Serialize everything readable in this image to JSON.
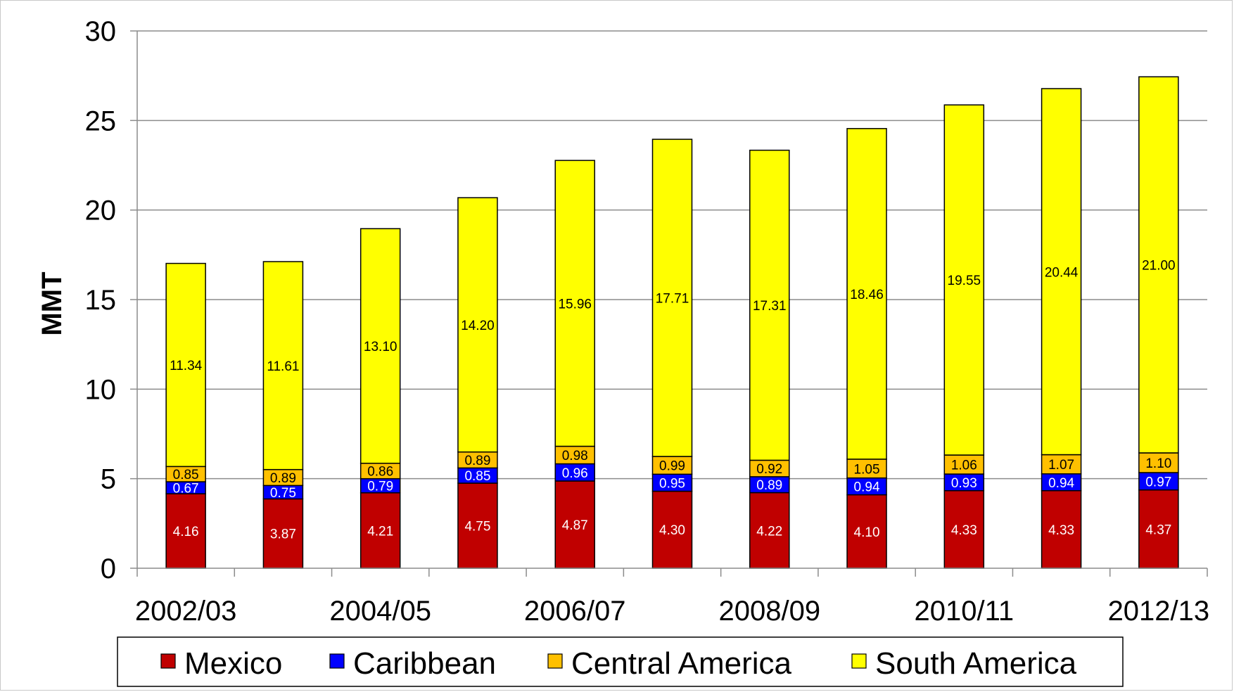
{
  "chart_data": {
    "type": "bar",
    "stacked": true,
    "ylabel": "MMT",
    "xlabel": "",
    "ylim": [
      0,
      30
    ],
    "yticks": [
      "0",
      "5",
      "10",
      "15",
      "20",
      "25",
      "30"
    ],
    "grid": true,
    "legend_position": "bottom",
    "categories": [
      "2002/03",
      "2003/04",
      "2004/05",
      "2005/06",
      "2006/07",
      "2007/08",
      "2008/09",
      "2009/10",
      "2010/11",
      "2011/12",
      "2012/13"
    ],
    "x_tick_labels": [
      "2002/03",
      "",
      "2004/05",
      "",
      "2006/07",
      "",
      "2008/09",
      "",
      "2010/11",
      "",
      "2012/13"
    ],
    "series": [
      {
        "name": "Mexico",
        "color": "#c00000",
        "label_color": "#ffffff",
        "values": [
          4.16,
          3.87,
          4.21,
          4.75,
          4.87,
          4.3,
          4.22,
          4.1,
          4.33,
          4.33,
          4.37
        ],
        "labels": [
          "4.16",
          "3.87",
          "4.21",
          "4.75",
          "4.87",
          "4.30",
          "4.22",
          "4.10",
          "4.33",
          "4.33",
          "4.37"
        ]
      },
      {
        "name": "Caribbean",
        "color": "#0000ff",
        "label_color": "#ffffff",
        "values": [
          0.67,
          0.75,
          0.79,
          0.85,
          0.96,
          0.95,
          0.89,
          0.94,
          0.93,
          0.94,
          0.97
        ],
        "labels": [
          "0.67",
          "0.75",
          "0.79",
          "0.85",
          "0.96",
          "0.95",
          "0.89",
          "0.94",
          "0.93",
          "0.94",
          "0.97"
        ]
      },
      {
        "name": "Central America",
        "color": "#ffc000",
        "label_color": "#000000",
        "values": [
          0.85,
          0.89,
          0.86,
          0.89,
          0.98,
          0.99,
          0.92,
          1.05,
          1.06,
          1.07,
          1.1
        ],
        "labels": [
          "0.85",
          "0.89",
          "0.86",
          "0.89",
          "0.98",
          "0.99",
          "0.92",
          "1.05",
          "1.06",
          "1.07",
          "1.10"
        ]
      },
      {
        "name": "South America",
        "color": "#ffff00",
        "label_color": "#000000",
        "values": [
          11.34,
          11.61,
          13.1,
          14.2,
          15.96,
          17.71,
          17.31,
          18.46,
          19.55,
          20.44,
          21.0
        ],
        "labels": [
          "11.34",
          "11.61",
          "13.10",
          "14.20",
          "15.96",
          "17.71",
          "17.31",
          "18.46",
          "19.55",
          "20.44",
          "21.00"
        ]
      }
    ]
  }
}
